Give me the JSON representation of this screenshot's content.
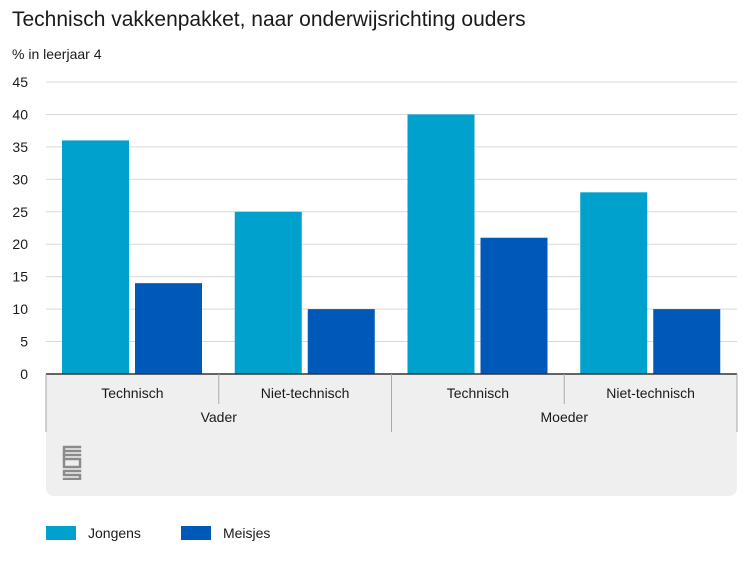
{
  "title": "Technisch vakkenpakket, naar onderwijsrichting ouders",
  "subtitle": "% in leerjaar 4",
  "colors": {
    "jongens": "#00a1cd",
    "meisjes": "#0058b8",
    "grid": "#d9d9d9",
    "panel": "#efefef"
  },
  "legend": {
    "jongens": "Jongens",
    "meisjes": "Meisjes"
  },
  "logo_icon": "cbs-logo-icon",
  "chart_data": {
    "type": "bar",
    "ylim": [
      0,
      45
    ],
    "yticks": [
      0,
      5,
      10,
      15,
      20,
      25,
      30,
      35,
      40,
      45
    ],
    "grid": true,
    "legend_position": "bottom-left",
    "groups": [
      {
        "label": "Vader",
        "categories": [
          "Technisch",
          "Niet-technisch"
        ]
      },
      {
        "label": "Moeder",
        "categories": [
          "Technisch",
          "Niet-technisch"
        ]
      }
    ],
    "series": [
      {
        "name": "Jongens",
        "values": [
          36,
          25,
          40,
          28
        ]
      },
      {
        "name": "Meisjes",
        "values": [
          14,
          10,
          21,
          10
        ]
      }
    ]
  }
}
